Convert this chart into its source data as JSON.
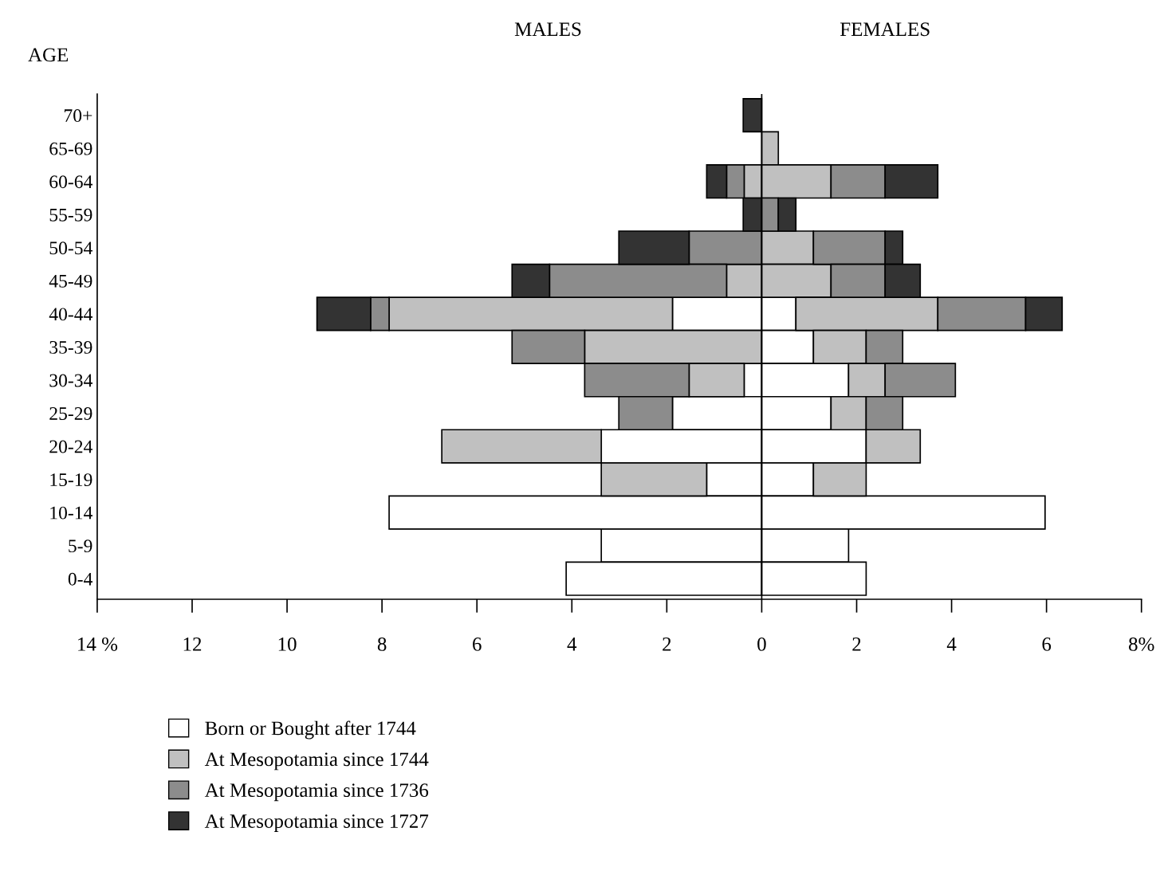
{
  "chart_data": {
    "type": "bar",
    "orientation": "horizontal",
    "stacked": true,
    "ylabel": "AGE",
    "annotations": [
      "MALES",
      "FEMALES"
    ],
    "categories": [
      "70+",
      "65-69",
      "60-64",
      "55-59",
      "50-54",
      "45-49",
      "40-44",
      "35-39",
      "30-34",
      "25-29",
      "20-24",
      "15-19",
      "10-14",
      "5-9",
      "0-4"
    ],
    "series": [
      {
        "name": "Born or Bought after 1744",
        "color": "#ffffff",
        "values": [
          null,
          null,
          null,
          null,
          null,
          null,
          -1.88,
          null,
          -0.37,
          -1.88,
          -3.38,
          -1.16,
          -7.85,
          -3.38,
          -4.12
        ]
      },
      {
        "name": "At Mesopotamia since 1744",
        "color": "#c0c0c0",
        "values": [
          null,
          null,
          -0.37,
          null,
          null,
          -0.74,
          -5.97,
          -3.73,
          -1.16,
          null,
          -3.36,
          -2.22,
          null,
          null,
          null
        ]
      },
      {
        "name": "At Mesopotamia since 1736",
        "color": "#8c8c8c",
        "values": [
          null,
          null,
          -0.37,
          null,
          -1.53,
          -3.73,
          -0.39,
          -1.53,
          -2.2,
          -1.13,
          null,
          null,
          null,
          null,
          null
        ]
      },
      {
        "name": "At Mesopotamia since 1727",
        "color": "#333333",
        "values": [
          -0.39,
          null,
          -0.42,
          -0.39,
          -1.48,
          -0.79,
          -1.13,
          null,
          null,
          null,
          null,
          null,
          null,
          null,
          null
        ]
      },
      {
        "color": "#ffffff",
        "values": [
          null,
          null,
          null,
          null,
          null,
          null,
          0.72,
          1.09,
          1.83,
          1.46,
          2.2,
          1.09,
          5.97,
          1.83,
          2.2
        ]
      },
      {
        "color": "#c0c0c0",
        "values": [
          null,
          0.35,
          1.46,
          null,
          1.09,
          1.46,
          2.99,
          1.11,
          0.77,
          0.74,
          1.14,
          1.11,
          null,
          null,
          null
        ]
      },
      {
        "color": "#8c8c8c",
        "values": [
          null,
          null,
          1.14,
          0.35,
          1.51,
          1.14,
          1.85,
          0.77,
          1.48,
          0.77,
          null,
          null,
          null,
          null,
          null
        ]
      },
      {
        "color": "#333333",
        "values": [
          null,
          null,
          1.11,
          0.37,
          0.37,
          0.74,
          0.77,
          null,
          null,
          null,
          null,
          null,
          null,
          null,
          null
        ]
      }
    ],
    "xlim": [
      -14,
      8
    ],
    "xticks": [
      {
        "value": -14,
        "label": "14 %"
      },
      {
        "value": -12,
        "label": "12"
      },
      {
        "value": -10,
        "label": "10"
      },
      {
        "value": -8,
        "label": "8"
      },
      {
        "value": -6,
        "label": "6"
      },
      {
        "value": -4,
        "label": "4"
      },
      {
        "value": -2,
        "label": "2"
      },
      0,
      2,
      4,
      6,
      {
        "value": 8,
        "label": "8%"
      }
    ],
    "ref_lines": [
      {
        "axis": "x",
        "value": 0,
        "color": "#000000"
      }
    ],
    "grid": false,
    "legend": "bottom left"
  }
}
